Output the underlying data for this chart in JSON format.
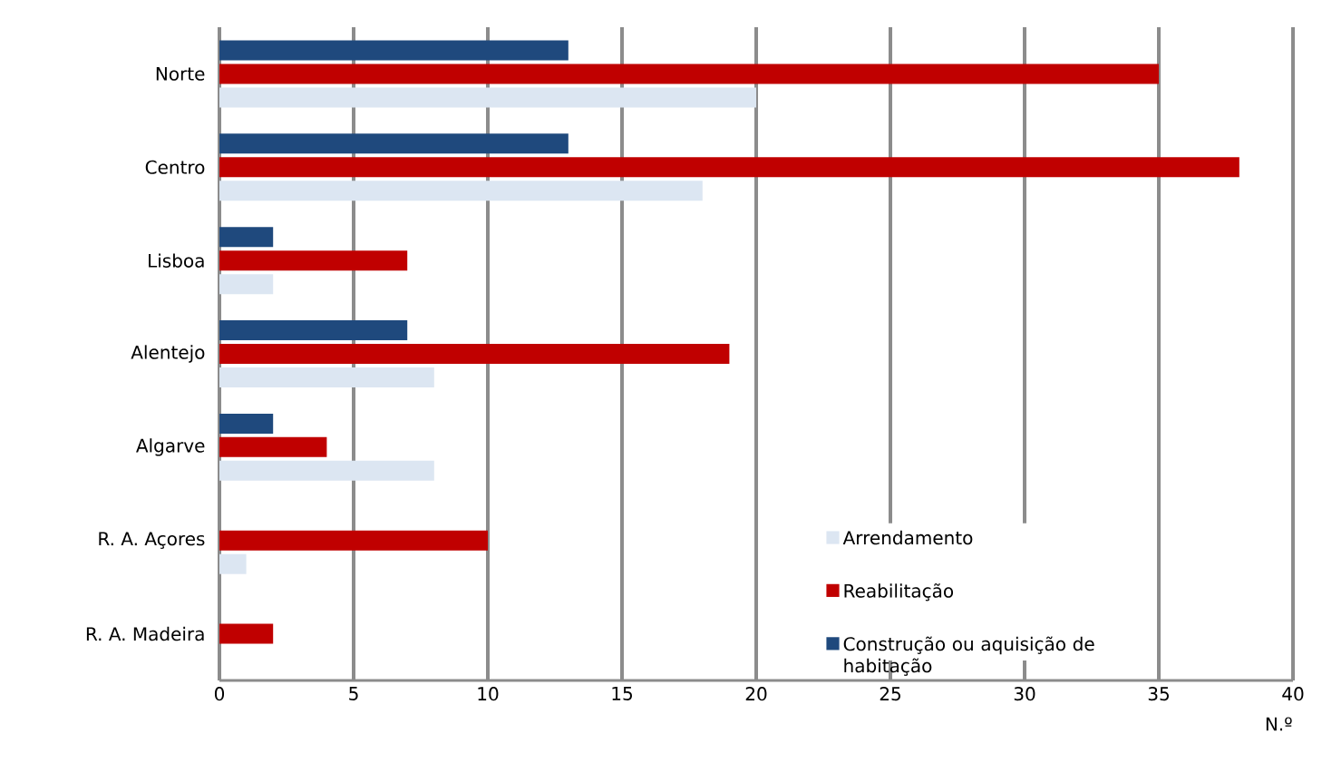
{
  "chart_data": {
    "type": "bar",
    "orientation": "horizontal",
    "xlabel": "N.º",
    "categories": [
      "Norte",
      "Centro",
      "Lisboa",
      "Alentejo",
      "Algarve",
      "R. A. Açores",
      "R. A. Madeira"
    ],
    "series": [
      {
        "name": "Arrendamento",
        "color": "#dce6f2",
        "values": [
          20,
          18,
          2,
          8,
          8,
          1,
          0
        ]
      },
      {
        "name": "Reabilitação",
        "color": "#c00000",
        "values": [
          35,
          38,
          7,
          19,
          4,
          10,
          2
        ]
      },
      {
        "name": "Construção ou aquisição de habitação",
        "color": "#1f497d",
        "values": [
          13,
          13,
          2,
          7,
          2,
          0,
          0
        ]
      }
    ],
    "xlim": [
      0,
      40
    ],
    "xticks": [
      0,
      5,
      10,
      15,
      20,
      25,
      30,
      35,
      40
    ],
    "grid": "x",
    "legend": "right"
  }
}
